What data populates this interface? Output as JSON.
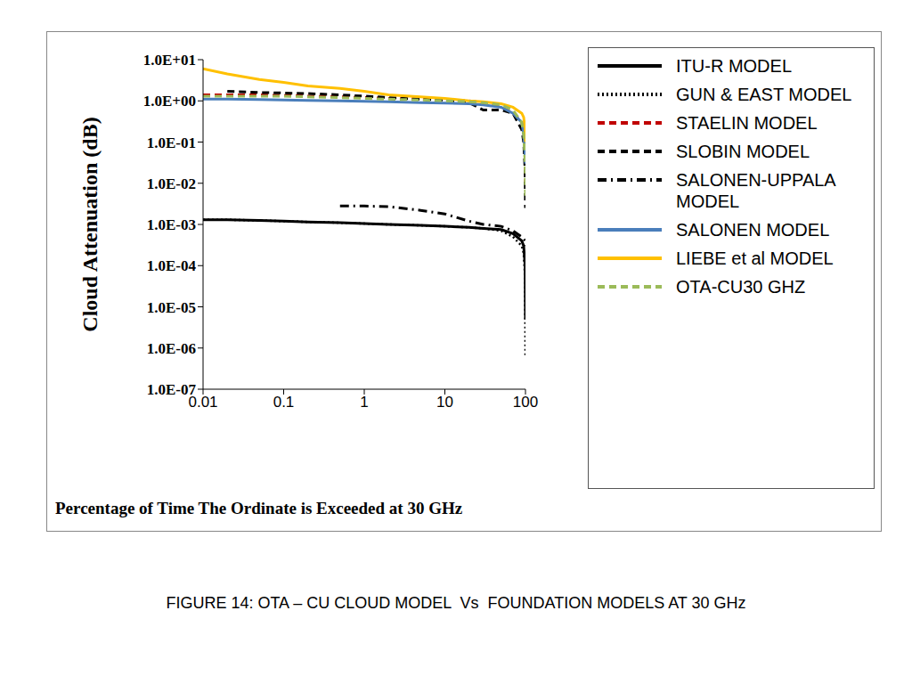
{
  "chart_data": {
    "type": "line",
    "title": "FIGURE 14: OTA – CU CLOUD MODEL  Vs  FOUNDATION MODELS AT 30 GHz",
    "x_label": "Percentage of Time The Ordinate is Exceeded at 30 GHz",
    "y_label": "Cloud Attenuation (dB)",
    "log": true,
    "grid": false,
    "legend": "right",
    "x": [
      0.01,
      0.02,
      0.05,
      0.1,
      0.2,
      0.5,
      1,
      2,
      5,
      10,
      20,
      30,
      50,
      70,
      90,
      95,
      99,
      100
    ],
    "xlim": [
      0.01,
      100
    ],
    "xticks": [
      0.01,
      0.1,
      1,
      10,
      100
    ],
    "ylim": [
      1e-07,
      10
    ],
    "yticks": [
      {
        "value": 1e-07,
        "label": "1.0E-07"
      },
      {
        "value": 1e-06,
        "label": "1.0E-06"
      },
      {
        "value": 1e-05,
        "label": "1.0E-05"
      },
      {
        "value": 0.0001,
        "label": "1.0E-04"
      },
      {
        "value": 0.001,
        "label": "1.0E-03"
      },
      {
        "value": 0.01,
        "label": "1.0E-02"
      },
      {
        "value": 0.1,
        "label": "1.0E-01"
      },
      {
        "value": 1,
        "label": "1.0E+00"
      },
      {
        "value": 10,
        "label": "1.0E+01"
      }
    ],
    "series": [
      {
        "name": "ITU-R MODEL",
        "color": "#000000",
        "line_style": "solid",
        "values": [
          0.0013,
          0.0013,
          0.00125,
          0.0012,
          0.00115,
          0.0011,
          0.00105,
          0.001,
          0.00095,
          0.0009,
          0.00085,
          0.0008,
          0.00075,
          0.0006,
          0.0004,
          0.0003,
          0.0001,
          5e-06
        ]
      },
      {
        "name": "GUN & EAST MODEL",
        "color": "#000000",
        "line_style": "dotted",
        "values": [
          0.0013,
          0.0013,
          0.00125,
          0.0012,
          0.00115,
          0.0011,
          0.00105,
          0.001,
          0.00095,
          0.0009,
          0.00085,
          0.0008,
          0.0007,
          0.0005,
          0.0003,
          0.0002,
          5e-05,
          6e-07
        ]
      },
      {
        "name": "STAELIN MODEL",
        "color": "#c00000",
        "line_style": "dashed",
        "values": [
          1.4,
          1.4,
          1.4,
          1.35,
          1.3,
          1.25,
          1.2,
          1.15,
          1.1,
          1.05,
          1.0,
          0.9,
          0.7,
          0.5,
          0.3,
          0.2,
          0.05,
          0.01
        ]
      },
      {
        "name": "SLOBIN MODEL",
        "color": "#000000",
        "line_style": "dashed",
        "values": [
          null,
          1.7,
          1.6,
          1.55,
          1.5,
          1.4,
          1.3,
          1.2,
          1.1,
          1.05,
          0.9,
          0.6,
          0.6,
          0.5,
          0.2,
          0.1,
          0.02,
          0.0025
        ]
      },
      {
        "name": "SALONEN-UPPALA MODEL",
        "color": "#000000",
        "line_style": "dashdot",
        "values": [
          null,
          null,
          null,
          null,
          null,
          0.0028,
          0.0028,
          0.0027,
          0.0022,
          0.0018,
          0.0012,
          0.001,
          0.0009,
          0.0007,
          0.0005,
          0.00045,
          0.0004,
          0.0003
        ]
      },
      {
        "name": "SALONEN MODEL",
        "color": "#4a7ebb",
        "line_style": "solid",
        "values": [
          1.1,
          1.1,
          1.08,
          1.05,
          1.02,
          1.0,
          0.98,
          0.95,
          0.9,
          0.88,
          0.85,
          0.8,
          0.7,
          0.5,
          0.3,
          0.15,
          0.05,
          0.03
        ]
      },
      {
        "name": "LIEBE et al MODEL",
        "color": "#ffc000",
        "line_style": "solid",
        "values": [
          6.0,
          4.5,
          3.3,
          2.8,
          2.3,
          2.0,
          1.7,
          1.4,
          1.25,
          1.15,
          1.0,
          0.95,
          0.85,
          0.7,
          0.5,
          0.4,
          0.2,
          0.1
        ]
      },
      {
        "name": "OTA-CU30 GHZ",
        "color": "#9bbb59",
        "line_style": "dashed",
        "values": [
          1.3,
          1.3,
          1.3,
          1.3,
          1.25,
          1.2,
          1.15,
          1.1,
          1.05,
          1.0,
          0.95,
          0.9,
          0.8,
          0.6,
          0.3,
          0.15,
          0.03,
          0.005
        ]
      }
    ]
  }
}
